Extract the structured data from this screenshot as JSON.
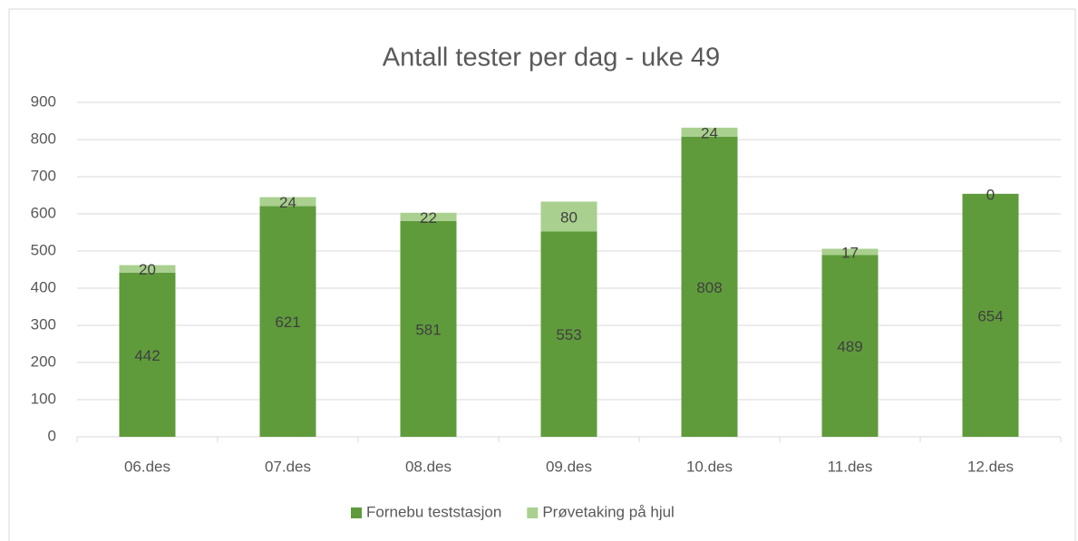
{
  "chart_data": {
    "type": "stacked_bar",
    "title": "Antall tester per dag - uke 49",
    "categories": [
      "06.des",
      "07.des",
      "08.des",
      "09.des",
      "10.des",
      "11.des",
      "12.des"
    ],
    "series": [
      {
        "name": "Fornebu teststasjon",
        "color": "#5f9b3b",
        "values": [
          442,
          621,
          581,
          553,
          808,
          489,
          654
        ]
      },
      {
        "name": "Prøvetaking på hjul",
        "color": "#a9d08e",
        "values": [
          20,
          24,
          22,
          80,
          24,
          17,
          0
        ]
      }
    ],
    "ylim": [
      0,
      900
    ],
    "yticks": [
      0,
      100,
      200,
      300,
      400,
      500,
      600,
      700,
      800,
      900
    ],
    "grid": true,
    "legend": "bottom"
  }
}
